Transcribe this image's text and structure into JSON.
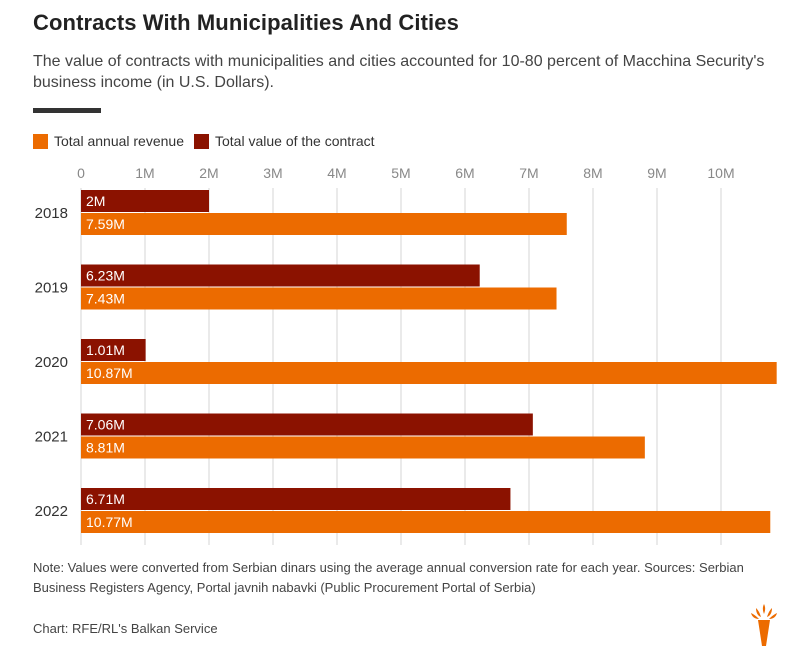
{
  "title": "Contracts With Municipalities And Cities",
  "subtitle": "The value of contracts with municipalities and cities accounted for 10-80 percent of Macchina Security's business income (in U.S. Dollars).",
  "note": "Note: Values were converted from Serbian dinars using the average annual conversion rate for each year. Sources: Serbian Business Registers Agency, Portal javnih nabavki (Public Procurement Portal of Serbia)",
  "credit": "Chart: RFE/RL's Balkan Service",
  "colors": {
    "revenue": "#ec6b00",
    "contract": "#8b1200",
    "grid": "#d6d6d6",
    "axis_text": "#888888"
  },
  "chart_data": {
    "type": "bar",
    "orientation": "horizontal",
    "categories": [
      "2018",
      "2019",
      "2020",
      "2021",
      "2022"
    ],
    "series": [
      {
        "name": "Total value of the contract",
        "values": [
          2,
          6.23,
          1.01,
          7.06,
          6.71
        ],
        "labels": [
          "2M",
          "6.23M",
          "1.01M",
          "7.06M",
          "6.71M"
        ]
      },
      {
        "name": "Total annual revenue",
        "values": [
          7.59,
          7.43,
          10.87,
          8.81,
          10.77
        ],
        "labels": [
          "7.59M",
          "7.43M",
          "10.87M",
          "8.81M",
          "10.77M"
        ]
      }
    ],
    "x_ticks": [
      "0",
      "1M",
      "2M",
      "3M",
      "4M",
      "5M",
      "6M",
      "7M",
      "8M",
      "9M",
      "10M"
    ],
    "xlim": [
      0,
      10.87
    ],
    "legend": [
      "Total annual revenue",
      "Total value of the contract"
    ],
    "legend_position": "top-left",
    "grid": true
  }
}
